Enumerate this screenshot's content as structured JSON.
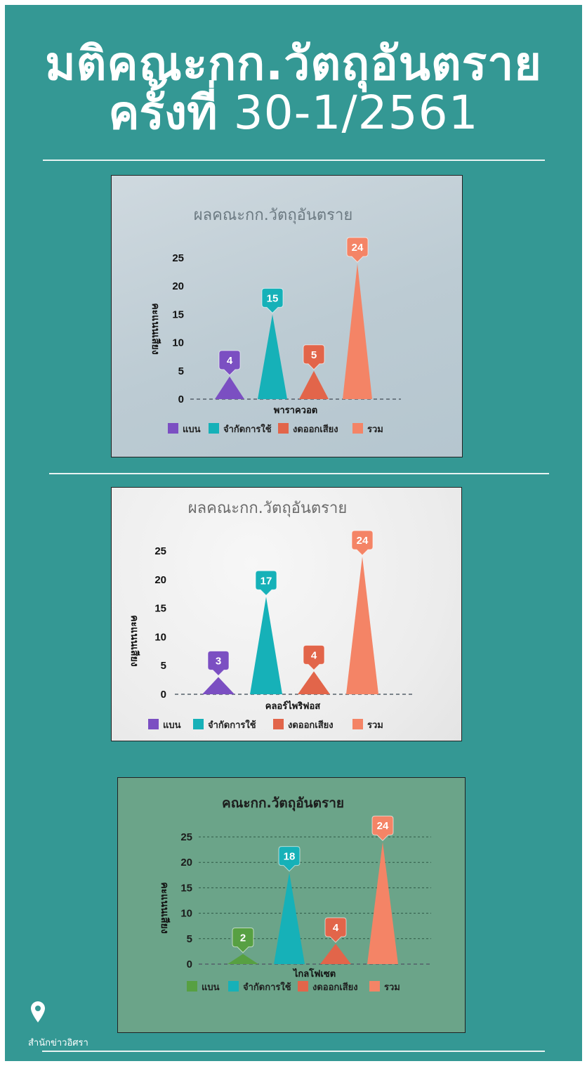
{
  "header": {
    "title_line1": "มติคณะกก.วัตถุอันตราย",
    "title_line2_prefix": "ครั้งที่",
    "title_line2_number": "30-1/2561"
  },
  "footer": {
    "source": "สำนักข่าวอิศรา",
    "pin_icon": "location-pin-icon"
  },
  "colors": {
    "background": "#349894",
    "ban_purple": "#7b4fc2",
    "ban_green": "#57a042",
    "restrict": "#16b1b8",
    "abstain": "#e2654a",
    "total": "#f48466"
  },
  "chart_data": [
    {
      "type": "bar",
      "title": "ผลคณะกก.วัตถุอันตราย",
      "xlabel": "พาราควอต",
      "ylabel": "คะแนนเสียง",
      "ylim": [
        0,
        25
      ],
      "yticks": [
        0,
        5,
        10,
        15,
        20,
        25
      ],
      "categories": [
        "แบน",
        "จำกัดการใช้",
        "งดออกเสียง",
        "รวม"
      ],
      "values": [
        4,
        15,
        5,
        24
      ],
      "legend_position": "bottom",
      "grid": false
    },
    {
      "type": "bar",
      "title": "ผลคณะกก.วัตถุอันตราย",
      "xlabel": "คลอร์ไพริฟอส",
      "ylabel": "คะแนนเสียง",
      "ylim": [
        0,
        25
      ],
      "yticks": [
        0,
        5,
        10,
        15,
        20,
        25
      ],
      "categories": [
        "แบน",
        "จำกัดการใช้",
        "งดออกเสียง",
        "รวม"
      ],
      "values": [
        3,
        17,
        4,
        24
      ],
      "legend_position": "bottom",
      "grid": false
    },
    {
      "type": "bar",
      "title": "คณะกก.วัตถุอันตราย",
      "xlabel": "ไกลโฟเซต",
      "ylabel": "คะแนนเสียง",
      "ylim": [
        0,
        25
      ],
      "yticks": [
        0,
        5,
        10,
        15,
        20,
        25
      ],
      "categories": [
        "แบน",
        "จำกัดการใช้",
        "งดออกเสียง",
        "รวม"
      ],
      "values": [
        2,
        18,
        4,
        24
      ],
      "legend_position": "bottom",
      "grid": true
    }
  ]
}
